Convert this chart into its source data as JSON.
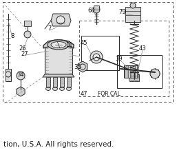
{
  "bg_color": "#ffffff",
  "text_color": "#1a1a1a",
  "fig_width": 2.57,
  "fig_height": 2.18,
  "dpi": 100,
  "footer_text": "tion, U.S.A. All rights reserved.",
  "footer_fontsize": 7.5
}
